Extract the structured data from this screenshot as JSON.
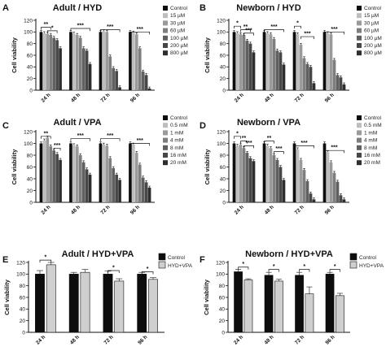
{
  "chart_data": [
    {
      "panel": "A",
      "title": "Adult / HYD",
      "type": "bar",
      "ylabel": "Cell viability",
      "ylim": [
        0,
        120
      ],
      "yticks": [
        0,
        20,
        40,
        60,
        80,
        100,
        120
      ],
      "categories": [
        "24 h",
        "48 h",
        "72 h",
        "96 h"
      ],
      "legend_entries": [
        "Control",
        "15 µM",
        "30 µM",
        "60 µM",
        "100 µM",
        "200 µM",
        "800 µM"
      ],
      "series": [
        {
          "name": "Control",
          "values": [
            100,
            100,
            100,
            100
          ]
        },
        {
          "name": "15 µM",
          "values": [
            98,
            97,
            101,
            99
          ]
        },
        {
          "name": "30 µM",
          "values": [
            97,
            95,
            100,
            96
          ]
        },
        {
          "name": "60 µM",
          "values": [
            95,
            90,
            58,
            72
          ]
        },
        {
          "name": "100 µM",
          "values": [
            90,
            72,
            38,
            32
          ]
        },
        {
          "name": "200 µM",
          "values": [
            86,
            68,
            33,
            26
          ]
        },
        {
          "name": "800 µM",
          "values": [
            72,
            45,
            5,
            3
          ]
        }
      ],
      "significance": [
        "**",
        "*",
        "***",
        "***",
        "***"
      ]
    },
    {
      "panel": "B",
      "title": "Newborn / HYD",
      "type": "bar",
      "ylabel": "Cell viability",
      "ylim": [
        0,
        120
      ],
      "yticks": [
        0,
        20,
        40,
        60,
        80,
        100,
        120
      ],
      "categories": [
        "24 h",
        "48 h",
        "72 h",
        "96 h"
      ],
      "legend_entries": [
        "Control",
        "15 µM",
        "30 µM",
        "60 µM",
        "100 µM",
        "200 µM",
        "800 µM"
      ],
      "series": [
        {
          "name": "Control",
          "values": [
            100,
            100,
            100,
            100
          ]
        },
        {
          "name": "15 µM",
          "values": [
            98,
            98,
            96,
            98
          ]
        },
        {
          "name": "30 µM",
          "values": [
            96,
            96,
            78,
            96
          ]
        },
        {
          "name": "60 µM",
          "values": [
            95,
            88,
            55,
            52
          ]
        },
        {
          "name": "100 µM",
          "values": [
            85,
            68,
            45,
            26
          ]
        },
        {
          "name": "200 µM",
          "values": [
            80,
            65,
            40,
            22
          ]
        },
        {
          "name": "800 µM",
          "values": [
            65,
            44,
            12,
            10
          ]
        }
      ],
      "significance": [
        "*",
        "**",
        "***",
        "***",
        "*",
        "***",
        "***"
      ]
    },
    {
      "panel": "C",
      "title": "Adult / VPA",
      "type": "bar",
      "ylabel": "Cell viability",
      "ylim": [
        0,
        120
      ],
      "yticks": [
        0,
        20,
        40,
        60,
        80,
        100,
        120
      ],
      "categories": [
        "24 h",
        "48 h",
        "72 h",
        "96 h"
      ],
      "legend_entries": [
        "Control",
        "0.5 mM",
        "1 mM",
        "4 mM",
        "8 mM",
        "16 mM",
        "20 mM"
      ],
      "series": [
        {
          "name": "Control",
          "values": [
            100,
            100,
            100,
            100
          ]
        },
        {
          "name": "0.5 mM",
          "values": [
            105,
            97,
            98,
            98
          ]
        },
        {
          "name": "1 mM",
          "values": [
            110,
            95,
            96,
            84
          ]
        },
        {
          "name": "4 mM",
          "values": [
            95,
            80,
            75,
            64
          ]
        },
        {
          "name": "8 mM",
          "values": [
            88,
            68,
            58,
            42
          ]
        },
        {
          "name": "16 mM",
          "values": [
            82,
            56,
            47,
            34
          ]
        },
        {
          "name": "20 mM",
          "values": [
            72,
            47,
            38,
            25
          ]
        }
      ],
      "significance": [
        "**",
        "***",
        "***",
        "***",
        "***"
      ]
    },
    {
      "panel": "D",
      "title": "Newborn / VPA",
      "type": "bar",
      "ylabel": "Cell viability",
      "ylim": [
        0,
        120
      ],
      "yticks": [
        0,
        20,
        40,
        60,
        80,
        100,
        120
      ],
      "categories": [
        "24 h",
        "48 h",
        "72 h",
        "96 h"
      ],
      "legend_entries": [
        "Control",
        "0.5 mM",
        "1 mM",
        "4 mM",
        "8 mM",
        "16 mM",
        "20 mM"
      ],
      "series": [
        {
          "name": "Control",
          "values": [
            100,
            100,
            100,
            100
          ]
        },
        {
          "name": "0.5 mM",
          "values": [
            96,
            96,
            90,
            85
          ]
        },
        {
          "name": "1 mM",
          "values": [
            98,
            92,
            72,
            68
          ]
        },
        {
          "name": "4 mM",
          "values": [
            92,
            80,
            55,
            50
          ]
        },
        {
          "name": "8 mM",
          "values": [
            84,
            72,
            36,
            35
          ]
        },
        {
          "name": "16 mM",
          "values": [
            75,
            60,
            15,
            12
          ]
        },
        {
          "name": "20 mM",
          "values": [
            70,
            38,
            5,
            5
          ]
        }
      ],
      "significance": [
        "*",
        "**",
        "***",
        "**",
        "***",
        "***",
        "***"
      ]
    },
    {
      "panel": "E",
      "title": "Adult / HYD+VPA",
      "type": "bar",
      "ylabel": "Cell viability",
      "ylim": [
        0,
        120
      ],
      "yticks": [
        0,
        20,
        40,
        60,
        80,
        100,
        120
      ],
      "categories": [
        "24 h",
        "48 h",
        "72 h",
        "96 h"
      ],
      "legend_entries": [
        "Control",
        "HYD+VPA"
      ],
      "series": [
        {
          "name": "Control",
          "values": [
            100,
            100,
            100,
            100
          ]
        },
        {
          "name": "HYD+VPA",
          "values": [
            116,
            103,
            88,
            91
          ]
        }
      ],
      "errors": [
        [
          6,
          3,
          5,
          3
        ],
        [
          4,
          5,
          4,
          3
        ]
      ],
      "significance": [
        "*",
        "*",
        "*"
      ]
    },
    {
      "panel": "F",
      "title": "Newborn / HYD+VPA",
      "type": "bar",
      "ylabel": "Cell viability",
      "ylim": [
        0,
        120
      ],
      "yticks": [
        0,
        20,
        40,
        60,
        80,
        100,
        120
      ],
      "categories": [
        "24 h",
        "48 h",
        "72 h",
        "96 h"
      ],
      "legend_entries": [
        "Control",
        "HYD+VPA"
      ],
      "series": [
        {
          "name": "Control",
          "values": [
            104,
            98,
            98,
            100
          ]
        },
        {
          "name": "HYD+VPA",
          "values": [
            90,
            88,
            66,
            63
          ]
        }
      ],
      "errors": [
        [
          4,
          5,
          5,
          3
        ],
        [
          2,
          3,
          12,
          4
        ]
      ],
      "significance": [
        "*",
        "*",
        "*",
        "*"
      ]
    }
  ],
  "colors": {
    "bar_shades": [
      "#0d0d0d",
      "#bdbdbd",
      "#9a9a9a",
      "#7e7e7e",
      "#606060",
      "#474747",
      "#2e2e2e"
    ],
    "pair_shades": [
      "#0d0d0d",
      "#cfcfcf"
    ],
    "axis": "#111111",
    "text": "#111111"
  }
}
